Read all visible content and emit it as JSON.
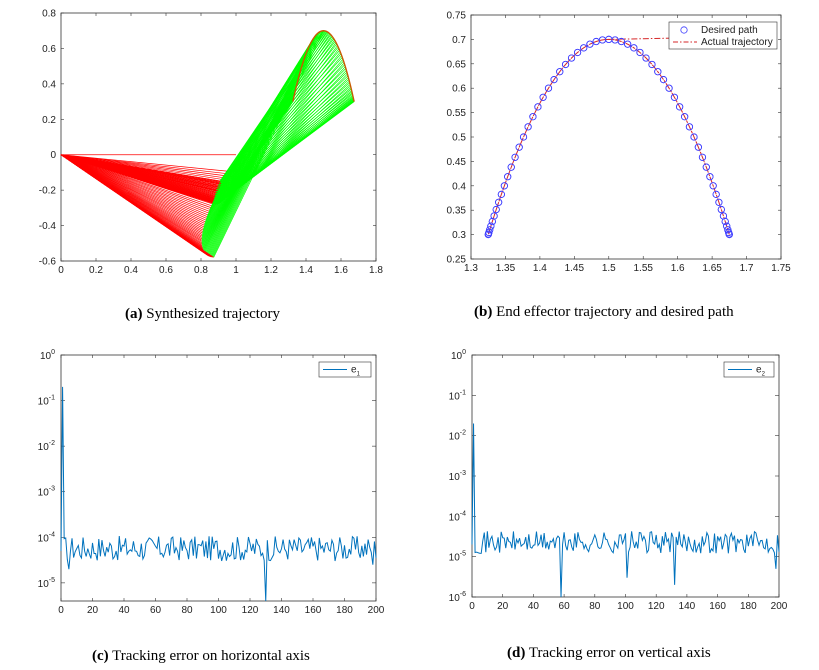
{
  "captions": {
    "a": {
      "tag": "(a)",
      "text": "Synthesized trajectory"
    },
    "b": {
      "tag": "(b)",
      "text": "End effector trajectory and desired path"
    },
    "c": {
      "tag": "(c)",
      "text": "Tracking error on horizontal axis"
    },
    "d": {
      "tag": "(d)",
      "text": "Tracking error on vertical axis"
    }
  },
  "colors": {
    "red": "#ff0000",
    "green": "#00ff00",
    "blue_circle": "#3f3fff",
    "dashdot": "#d62728",
    "error_line": "#0072bd"
  },
  "chart_data": [
    {
      "id": "a",
      "type": "line",
      "title": "",
      "xlim": [
        0,
        1.8
      ],
      "ylim": [
        -0.6,
        0.8
      ],
      "xticks": [
        "0",
        "0.2",
        "0.4",
        "0.6",
        "0.8",
        "1",
        "1.2",
        "1.4",
        "1.6",
        "1.8"
      ],
      "yticks": [
        "-0.6",
        "-0.4",
        "-0.2",
        "0",
        "0.2",
        "0.4",
        "0.6",
        "0.8"
      ],
      "series": [
        {
          "link": 1,
          "color": "red",
          "base": [
            0,
            0
          ],
          "elbow_x_range": [
            0.8,
            1.0
          ],
          "elbow_y_range": [
            -0.58,
            0.0
          ]
        },
        {
          "link": 2,
          "color": "green",
          "end_effector_path": "figure-eight",
          "x_range": [
            1.3,
            1.7
          ],
          "y_range": [
            0.3,
            0.7
          ]
        }
      ]
    },
    {
      "id": "b",
      "type": "line",
      "title": "",
      "xlim": [
        1.3,
        1.75
      ],
      "ylim": [
        0.25,
        0.75
      ],
      "xticks": [
        "1.3",
        "1.35",
        "1.4",
        "1.45",
        "1.5",
        "1.55",
        "1.6",
        "1.65",
        "1.7",
        "1.75"
      ],
      "yticks": [
        "0.25",
        "0.3",
        "0.35",
        "0.4",
        "0.45",
        "0.5",
        "0.55",
        "0.6",
        "0.65",
        "0.7",
        "0.75"
      ],
      "legend": {
        "location": "top-right",
        "entries": [
          "Desired path",
          "Actual trajectory"
        ]
      },
      "series": [
        {
          "name": "Desired path",
          "marker": "circle",
          "center": [
            1.5,
            0.5
          ],
          "x_amplitude": 0.175,
          "y_amplitude": 0.2
        },
        {
          "name": "Actual trajectory",
          "style": "dash-dot",
          "center": [
            1.5,
            0.5
          ],
          "x_amplitude": 0.175,
          "y_amplitude": 0.2,
          "start": [
            1.5,
            0.7
          ],
          "initial_segment_from": [
            1.675,
            0.705
          ]
        }
      ]
    },
    {
      "id": "c",
      "type": "line",
      "title": "",
      "yscale": "log",
      "xlim": [
        0,
        200
      ],
      "ylim": [
        4e-06,
        1
      ],
      "xticks": [
        "0",
        "20",
        "40",
        "60",
        "80",
        "100",
        "120",
        "140",
        "160",
        "180",
        "200"
      ],
      "yticks_exp": [
        "0",
        "-1",
        "-2",
        "-3",
        "-4",
        "-5"
      ],
      "legend": {
        "location": "top-right",
        "entries": [
          "e1"
        ]
      },
      "series": [
        {
          "name": "e1",
          "peak": {
            "x": 1,
            "y": 0.2
          },
          "baseline": 5e-05,
          "dips": [
            {
              "x": 5,
              "y": 2e-05
            },
            {
              "x": 130,
              "y": 4e-06
            },
            {
              "x": 198,
              "y": 2.5e-05
            }
          ]
        }
      ]
    },
    {
      "id": "d",
      "type": "line",
      "title": "",
      "yscale": "log",
      "xlim": [
        0,
        200
      ],
      "ylim": [
        1e-06,
        1
      ],
      "xticks": [
        "0",
        "20",
        "40",
        "60",
        "80",
        "100",
        "120",
        "140",
        "160",
        "180",
        "200"
      ],
      "yticks_exp": [
        "0",
        "-1",
        "-2",
        "-3",
        "-4",
        "-5",
        "-6"
      ],
      "legend": {
        "location": "top-right",
        "entries": [
          "e2"
        ]
      },
      "series": [
        {
          "name": "e2",
          "peak": {
            "x": 1,
            "y": 0.02
          },
          "baseline": 2e-05,
          "dips": [
            {
              "x": 58,
              "y": 1e-06
            },
            {
              "x": 101,
              "y": 3e-06
            },
            {
              "x": 132,
              "y": 2e-06
            },
            {
              "x": 198,
              "y": 5e-06
            }
          ]
        }
      ]
    }
  ]
}
